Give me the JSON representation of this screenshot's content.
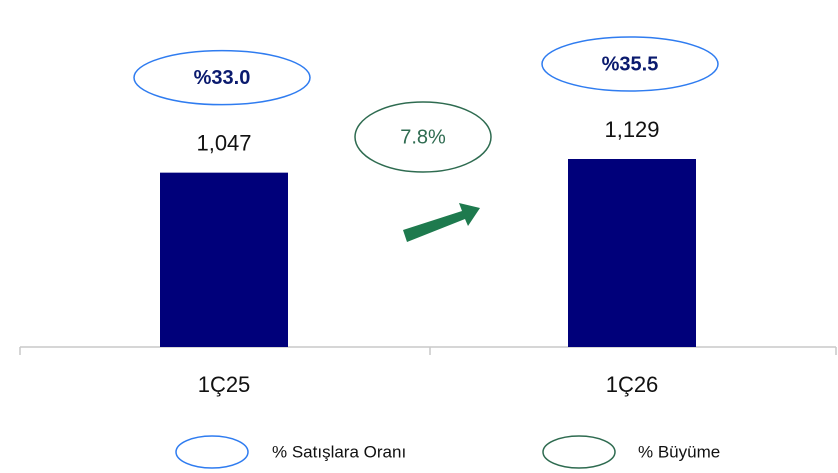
{
  "chart_data": {
    "type": "bar",
    "categories": [
      "1Ç25",
      "1Ç26"
    ],
    "values": [
      1047,
      1129
    ],
    "value_labels": [
      "1,047",
      "1,129"
    ],
    "color": "#00007a",
    "ratio": {
      "name": "% Satışlara Oranı",
      "color": "#2f7cf0",
      "values": [
        33.0,
        35.5
      ],
      "value_labels": [
        "%33.0",
        "%35.5"
      ]
    },
    "growth": {
      "name": "% Büyüme",
      "color": "#2e6b50",
      "value": 7.8,
      "value_label": "7.8%"
    }
  }
}
